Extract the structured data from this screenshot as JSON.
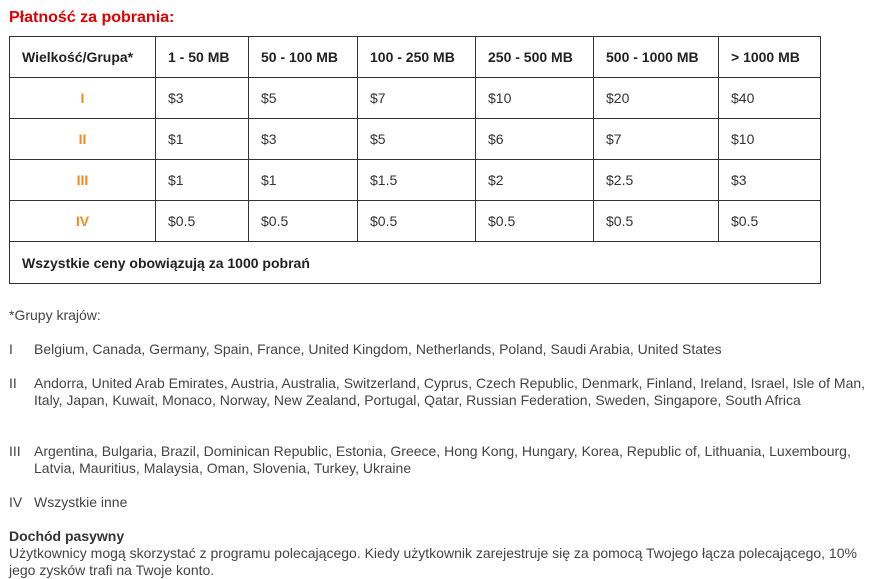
{
  "heading": "Płatność za pobrania:",
  "table": {
    "headers": [
      "Wielkość/Grupa*",
      "1 - 50 MB",
      "50 - 100 MB",
      "100 - 250 MB",
      "250 - 500 MB",
      "500 - 1000 MB",
      "> 1000 MB"
    ],
    "rows": [
      {
        "group": "I",
        "cells": [
          "$3",
          "$5",
          "$7",
          "$10",
          "$20",
          "$40"
        ]
      },
      {
        "group": "II",
        "cells": [
          "$1",
          "$3",
          "$5",
          "$6",
          "$7",
          "$10"
        ]
      },
      {
        "group": "III",
        "cells": [
          "$1",
          "$1",
          "$1.5",
          "$2",
          "$2.5",
          "$3"
        ]
      },
      {
        "group": "IV",
        "cells": [
          "$0.5",
          "$0.5",
          "$0.5",
          "$0.5",
          "$0.5",
          "$0.5"
        ]
      }
    ],
    "footer": "Wszystkie ceny obowiązują za 1000 pobrań"
  },
  "country_groups_note": "*Grupy krajów:",
  "country_groups": [
    {
      "num": "I",
      "countries": "Belgium, Canada, Germany, Spain, France, United Kingdom, Netherlands, Poland, Saudi Arabia, United States"
    },
    {
      "num": "II",
      "countries": "Andorra, United Arab Emirates, Austria, Australia, Switzerland, Cyprus, Czech Republic, Denmark, Finland, Ireland, Israel, Isle of Man, Italy, Japan, Kuwait, Monaco, Norway, New Zealand, Portugal, Qatar, Russian Federation, Sweden, Singapore, South Africa"
    },
    {
      "num": "III",
      "countries": "Argentina, Bulgaria, Brazil, Dominican Republic, Estonia, Greece, Hong Kong, Hungary, Korea, Republic of, Lithuania, Luxembourg, Latvia, Mauritius, Malaysia, Oman, Slovenia, Turkey, Ukraine"
    },
    {
      "num": "IV",
      "countries": "Wszystkie inne"
    }
  ],
  "passive_income": {
    "title": "Dochód pasywny",
    "text": "Użytkownicy mogą skorzystać z programu polecającego. Kiedy użytkownik zarejestruje się za pomocą Twojego łącza polecającego, 10% jego zysków trafi na Twoje konto."
  },
  "colors": {
    "heading": "#e00000",
    "group_label": "#f08a24",
    "border": "#333333"
  }
}
